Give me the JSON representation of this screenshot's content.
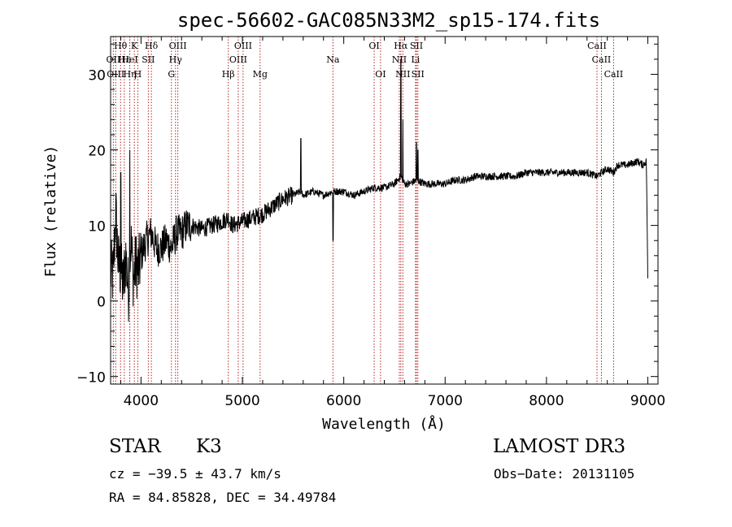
{
  "chart_data": {
    "type": "line",
    "title": "spec-56602-GAC085N33M2_sp15-174.fits",
    "xlabel": "Wavelength (Å)",
    "ylabel": "Flux (relative)",
    "xlim": [
      3700,
      9100
    ],
    "ylim": [
      -11,
      35
    ],
    "xticks": [
      {
        "value": 4000,
        "label": "4000"
      },
      {
        "value": 5000,
        "label": "5000"
      },
      {
        "value": 6000,
        "label": "6000"
      },
      {
        "value": 7000,
        "label": "7000"
      },
      {
        "value": 8000,
        "label": "8000"
      },
      {
        "value": 9000,
        "label": "9000"
      }
    ],
    "yticks": [
      {
        "value": -10,
        "label": "−10"
      },
      {
        "value": 0,
        "label": "0"
      },
      {
        "value": 10,
        "label": "10"
      },
      {
        "value": 20,
        "label": "20"
      },
      {
        "value": 30,
        "label": "30"
      }
    ],
    "spectrum": {
      "name": "flux",
      "x": [
        3700,
        3725,
        3750,
        3775,
        3800,
        3825,
        3850,
        3875,
        3900,
        3925,
        3950,
        3975,
        4000,
        4050,
        4100,
        4150,
        4200,
        4250,
        4300,
        4350,
        4400,
        4450,
        4500,
        4600,
        4700,
        4800,
        4860,
        4900,
        5000,
        5100,
        5200,
        5300,
        5400,
        5500,
        5580,
        5600,
        5700,
        5800,
        5893,
        6000,
        6100,
        6200,
        6300,
        6400,
        6500,
        6563,
        6600,
        6650,
        6717,
        6800,
        6900,
        7000,
        7100,
        7200,
        7300,
        7400,
        7500,
        7600,
        7700,
        7800,
        7900,
        8000,
        8100,
        8200,
        8300,
        8400,
        8498,
        8542,
        8600,
        8662,
        8700,
        8800,
        8900,
        8950,
        8985,
        9000
      ],
      "y": [
        4,
        3,
        12,
        5,
        4,
        2,
        6,
        1,
        8,
        3,
        5,
        4,
        6,
        8,
        9,
        7,
        7,
        8,
        7,
        9,
        9,
        10,
        10,
        9.5,
        10,
        10.5,
        11,
        10,
        10.5,
        11,
        11.5,
        12.5,
        13.5,
        14,
        14.5,
        14,
        14.5,
        14,
        14.5,
        14.5,
        14,
        14.5,
        15,
        15,
        15.5,
        16.5,
        15.5,
        15.5,
        16,
        15.5,
        15.5,
        15.5,
        16,
        16,
        16.5,
        16.5,
        16.5,
        16.5,
        16.5,
        17,
        17,
        17,
        17,
        17,
        17,
        17,
        16.5,
        17,
        17.5,
        17,
        18,
        18,
        18.5,
        18,
        18.5,
        3
      ]
    },
    "features": [
      {
        "wavelength": 5577,
        "peak": 21.5
      },
      {
        "wavelength": 5895,
        "peak": 8
      },
      {
        "wavelength": 6563,
        "peak": 32
      },
      {
        "wavelength": 6583,
        "peak": 24
      },
      {
        "wavelength": 6717,
        "peak": 21
      },
      {
        "wavelength": 6731,
        "peak": 20
      },
      {
        "wavelength": 3800,
        "peak": 17
      },
      {
        "wavelength": 3889,
        "peak": 20
      }
    ],
    "lines": [
      {
        "label": "Hθ",
        "wavelength": 3798,
        "row": 0
      },
      {
        "label": "K",
        "wavelength": 3934,
        "row": 0
      },
      {
        "label": "Hδ",
        "wavelength": 4102,
        "row": 0
      },
      {
        "label": "OIII",
        "wavelength": 4363,
        "row": 0
      },
      {
        "label": "OIII",
        "wavelength": 5007,
        "row": 0
      },
      {
        "label": "OI",
        "wavelength": 6300,
        "row": 0
      },
      {
        "label": "Hα",
        "wavelength": 6563,
        "row": 0
      },
      {
        "label": "SII",
        "wavelength": 6717,
        "row": 0
      },
      {
        "label": "CaII",
        "wavelength": 8498,
        "row": 0
      },
      {
        "label": "OII",
        "wavelength": 3727,
        "row": 1
      },
      {
        "label": "Hε",
        "wavelength": 3835,
        "row": 1
      },
      {
        "label": "HeI",
        "wavelength": 3889,
        "row": 1
      },
      {
        "label": "SII",
        "wavelength": 4072,
        "row": 1
      },
      {
        "label": "Hγ",
        "wavelength": 4340,
        "row": 1
      },
      {
        "label": "OIII",
        "wavelength": 4959,
        "row": 1
      },
      {
        "label": "Na",
        "wavelength": 5893,
        "row": 1
      },
      {
        "label": "NII",
        "wavelength": 6548,
        "row": 1
      },
      {
        "label": "Li",
        "wavelength": 6708,
        "row": 1
      },
      {
        "label": "CaII",
        "wavelength": 8542,
        "row": 1
      },
      {
        "label": "OIII",
        "wavelength": 3750,
        "row": 2
      },
      {
        "label": "Hη",
        "wavelength": 3889,
        "row": 2
      },
      {
        "label": "H",
        "wavelength": 3968,
        "row": 2
      },
      {
        "label": "G",
        "wavelength": 4300,
        "row": 2
      },
      {
        "label": "Hβ",
        "wavelength": 4861,
        "row": 2
      },
      {
        "label": "Mg",
        "wavelength": 5175,
        "row": 2
      },
      {
        "label": "OI",
        "wavelength": 6363,
        "row": 2
      },
      {
        "label": "NII",
        "wavelength": 6583,
        "row": 2
      },
      {
        "label": "SII",
        "wavelength": 6731,
        "row": 2
      },
      {
        "label": "CaII",
        "wavelength": 8662,
        "row": 2
      }
    ]
  },
  "info": {
    "classification": "STAR",
    "subclass": "K3",
    "survey": "LAMOST DR3",
    "velocity": "cz = −39.5 ± 43.7 km/s",
    "obs_date": "Obs−Date: 20131105",
    "coordinates": "RA =  84.85828, DEC =  34.49784"
  }
}
